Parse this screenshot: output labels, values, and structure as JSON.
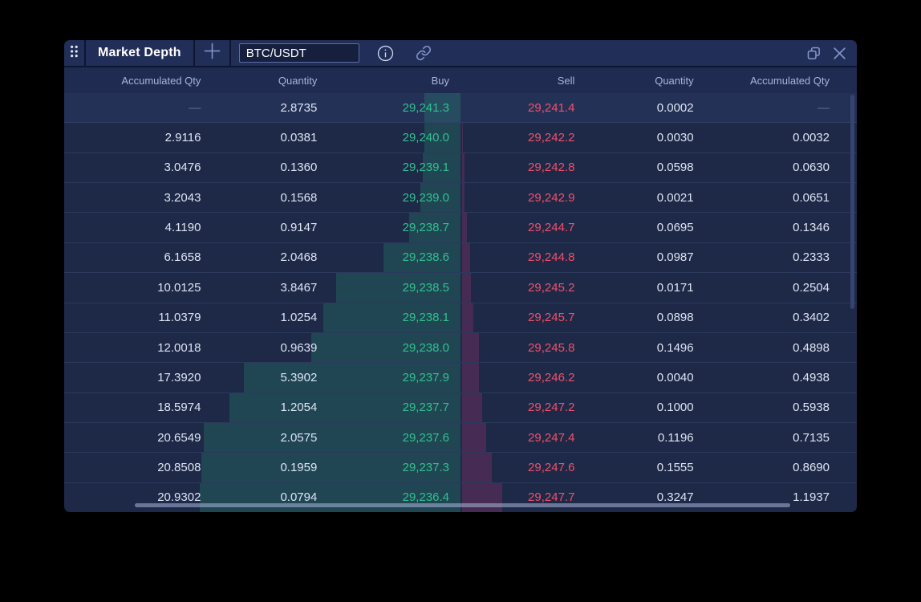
{
  "window": {
    "title": "Market Depth",
    "symbol_input": {
      "value": "BTC/USDT"
    }
  },
  "header": {
    "cols": [
      "Accumulated Qty",
      "Quantity",
      "Buy",
      "Sell",
      "Quantity",
      "Accumulated Qty"
    ]
  },
  "colors": {
    "buy_price": "#31c08e",
    "sell_price": "#f0506a",
    "buy_depth_fill": "rgba(47,190,134,0.20)",
    "sell_depth_fill": "rgba(219,48,130,0.22)",
    "panel_bg": "#1d2947",
    "titlebar_bg": "#212e58"
  },
  "order_book": {
    "rows": [
      {
        "buy_acc": "—",
        "buy_qty": "2.8735",
        "buy_price": "29,241.3",
        "sell_price": "29,241.4",
        "sell_qty": "0.0002",
        "sell_acc": "—",
        "buy_depth": 2.8735,
        "sell_depth": 0.0002
      },
      {
        "buy_acc": "2.9116",
        "buy_qty": "0.0381",
        "buy_price": "29,240.0",
        "sell_price": "29,242.2",
        "sell_qty": "0.0030",
        "sell_acc": "0.0032",
        "buy_depth": 2.9116,
        "sell_depth": 0.0032
      },
      {
        "buy_acc": "3.0476",
        "buy_qty": "0.1360",
        "buy_price": "29,239.1",
        "sell_price": "29,242.8",
        "sell_qty": "0.0598",
        "sell_acc": "0.0630",
        "buy_depth": 3.0476,
        "sell_depth": 0.063
      },
      {
        "buy_acc": "3.2043",
        "buy_qty": "0.1568",
        "buy_price": "29,239.0",
        "sell_price": "29,242.9",
        "sell_qty": "0.0021",
        "sell_acc": "0.0651",
        "buy_depth": 3.2043,
        "sell_depth": 0.0651
      },
      {
        "buy_acc": "4.1190",
        "buy_qty": "0.9147",
        "buy_price": "29,238.7",
        "sell_price": "29,244.7",
        "sell_qty": "0.0695",
        "sell_acc": "0.1346",
        "buy_depth": 4.119,
        "sell_depth": 0.1346
      },
      {
        "buy_acc": "6.1658",
        "buy_qty": "2.0468",
        "buy_price": "29,238.6",
        "sell_price": "29,244.8",
        "sell_qty": "0.0987",
        "sell_acc": "0.2333",
        "buy_depth": 6.1658,
        "sell_depth": 0.2333
      },
      {
        "buy_acc": "10.0125",
        "buy_qty": "3.8467",
        "buy_price": "29,238.5",
        "sell_price": "29,245.2",
        "sell_qty": "0.0171",
        "sell_acc": "0.2504",
        "buy_depth": 10.0125,
        "sell_depth": 0.2504
      },
      {
        "buy_acc": "11.0379",
        "buy_qty": "1.0254",
        "buy_price": "29,238.1",
        "sell_price": "29,245.7",
        "sell_qty": "0.0898",
        "sell_acc": "0.3402",
        "buy_depth": 11.0379,
        "sell_depth": 0.3402
      },
      {
        "buy_acc": "12.0018",
        "buy_qty": "0.9639",
        "buy_price": "29,238.0",
        "sell_price": "29,245.8",
        "sell_qty": "0.1496",
        "sell_acc": "0.4898",
        "buy_depth": 12.0018,
        "sell_depth": 0.4898
      },
      {
        "buy_acc": "17.3920",
        "buy_qty": "5.3902",
        "buy_price": "29,237.9",
        "sell_price": "29,246.2",
        "sell_qty": "0.0040",
        "sell_acc": "0.4938",
        "buy_depth": 17.392,
        "sell_depth": 0.4938
      },
      {
        "buy_acc": "18.5974",
        "buy_qty": "1.2054",
        "buy_price": "29,237.7",
        "sell_price": "29,247.2",
        "sell_qty": "0.1000",
        "sell_acc": "0.5938",
        "buy_depth": 18.5974,
        "sell_depth": 0.5938
      },
      {
        "buy_acc": "20.6549",
        "buy_qty": "2.0575",
        "buy_price": "29,237.6",
        "sell_price": "29,247.4",
        "sell_qty": "0.1196",
        "sell_acc": "0.7135",
        "buy_depth": 20.6549,
        "sell_depth": 0.7135
      },
      {
        "buy_acc": "20.8508",
        "buy_qty": "0.1959",
        "buy_price": "29,237.3",
        "sell_price": "29,247.6",
        "sell_qty": "0.1555",
        "sell_acc": "0.8690",
        "buy_depth": 20.8508,
        "sell_depth": 0.869
      },
      {
        "buy_acc": "20.9302",
        "buy_qty": "0.0794",
        "buy_price": "29,236.4",
        "sell_price": "29,247.7",
        "sell_qty": "0.3247",
        "sell_acc": "1.1937",
        "buy_depth": 20.9302,
        "sell_depth": 1.1937
      }
    ],
    "depth_viz": {
      "buy_max": 20.9302,
      "sell_max": 1.1937,
      "buy_max_bar_pct": 65.7,
      "sell_max_bar_pct": 10.2
    }
  }
}
